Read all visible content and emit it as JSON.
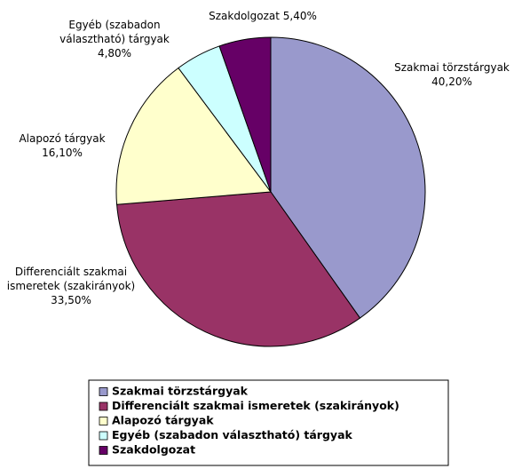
{
  "chart_data": {
    "type": "pie",
    "categories": [
      "Szakmai törzstárgyak",
      "Differenciált szakmai ismeretek (szakirányok)",
      "Alapozó tárgyak",
      "Egyéb (szabadon választható) tárgyak",
      "Szakdolgozat"
    ],
    "values": [
      40.2,
      33.5,
      16.1,
      4.8,
      5.4
    ],
    "value_labels": [
      "40,20%",
      "33,50%",
      "16,10%",
      "4,80%",
      "5,40%"
    ],
    "colors": [
      "#9999cc",
      "#993366",
      "#ffffcc",
      "#ccffff",
      "#660066"
    ]
  }
}
